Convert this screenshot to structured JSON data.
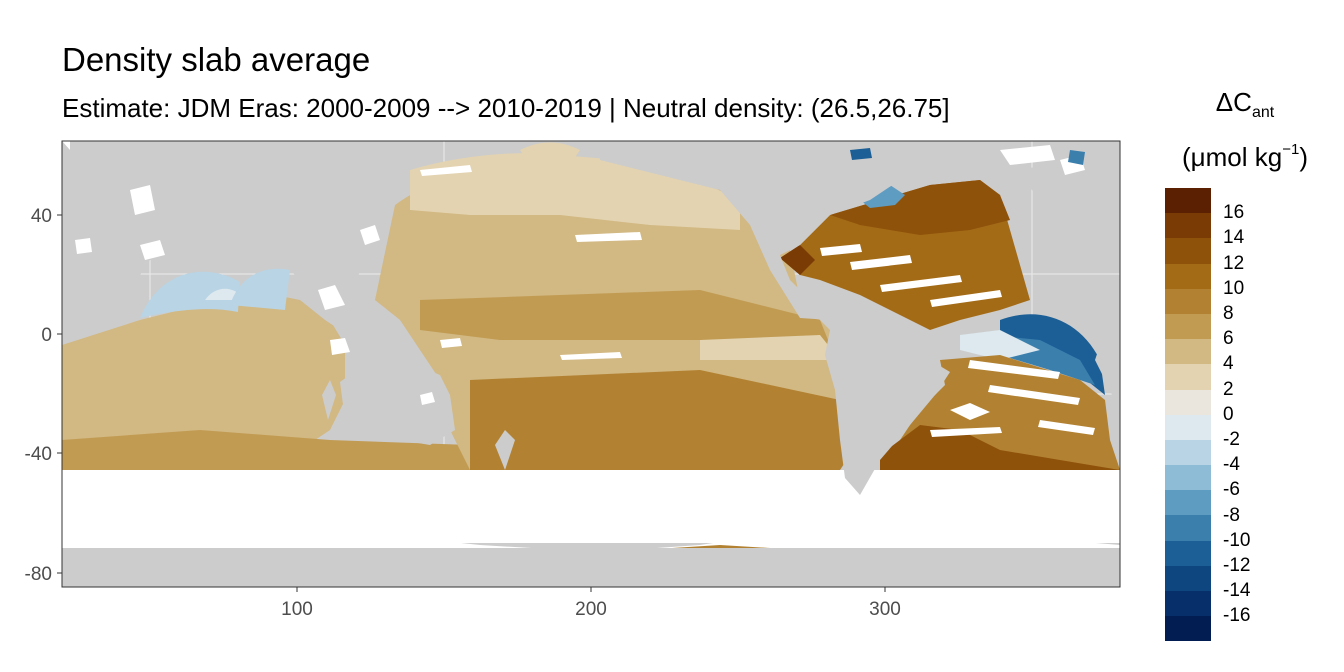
{
  "title": "Density slab average",
  "subtitle": "Estimate: JDM Eras: 2000-2009 --> 2010-2019 | Neutral density: (26.5,26.75]",
  "legend": {
    "title_line1_prefix": "ΔC",
    "title_line1_sub": "ant",
    "title_line2_prefix": "(μmol kg",
    "title_line2_sup": "−1",
    "title_line2_suffix": ")",
    "labels": [
      "16",
      "14",
      "12",
      "10",
      "8",
      "6",
      "4",
      "2",
      "0",
      "-2",
      "-4",
      "-6",
      "-8",
      "-10",
      "-12",
      "-14",
      "-16"
    ],
    "colors": [
      "#5b2002",
      "#7a3b05",
      "#8f520a",
      "#a46b17",
      "#b28232",
      "#c19b52",
      "#d2b882",
      "#e3d3b0",
      "#ebe6dd",
      "#dde8ef",
      "#b9d4e4",
      "#8ebcd6",
      "#5f9cc2",
      "#3b7fad",
      "#1b5f96",
      "#0e4780",
      "#07306a",
      "#021d52"
    ]
  },
  "chart_data": {
    "type": "heatmap",
    "title": "Density slab average",
    "subtitle": "Estimate: JDM Eras: 2000-2009 --> 2010-2019 | Neutral density: (26.5,26.75]",
    "xlim": [
      20,
      380
    ],
    "ylim": [
      -85,
      63
    ],
    "x_ticks": [
      100,
      200,
      300
    ],
    "y_ticks": [
      40,
      0,
      -40,
      -80
    ],
    "x_tick_labels": [
      "100",
      "200",
      "300"
    ],
    "y_tick_labels": [
      "40",
      "0",
      "-40",
      "-80"
    ],
    "colorbar_range": [
      -18,
      18
    ],
    "legend_placement": "right",
    "grid": true,
    "background_land_color": "#cccccc",
    "no_data_band_lat": [
      -70,
      -45
    ]
  }
}
